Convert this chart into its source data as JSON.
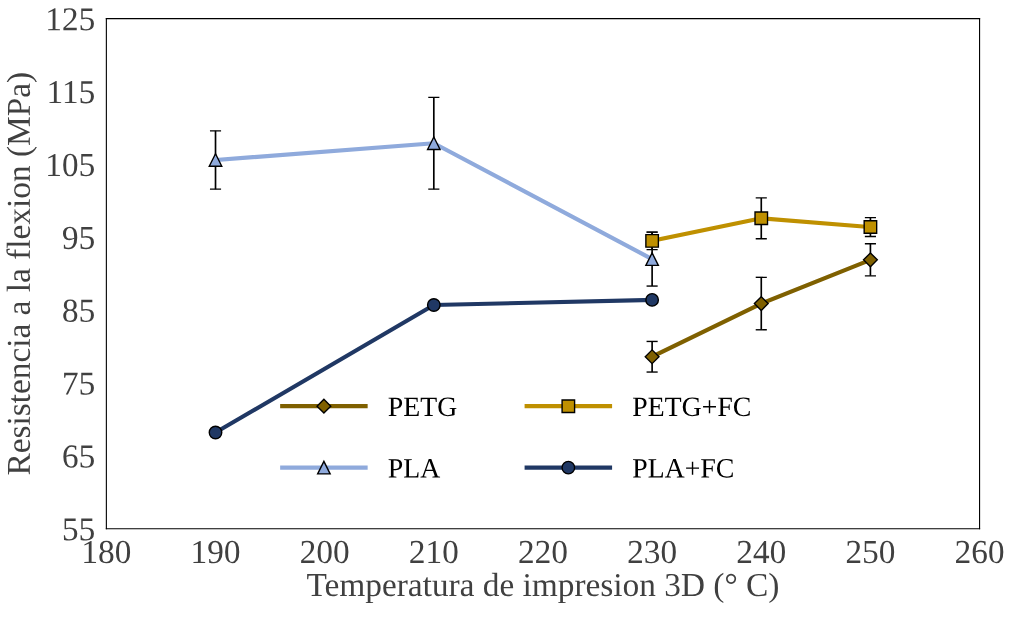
{
  "chart_data": {
    "type": "line",
    "xlabel": "Temperatura de impresion 3D (° C)",
    "ylabel": "Resistencia a la flexion (MPa)",
    "xlim": [
      180,
      260
    ],
    "xticks": [
      180,
      190,
      200,
      210,
      220,
      230,
      240,
      250,
      260
    ],
    "ylim": [
      55,
      125
    ],
    "yticks": [
      55,
      65,
      75,
      85,
      95,
      105,
      115,
      125
    ],
    "grid": false,
    "legend": "bottom",
    "line_style": "solid",
    "series": [
      {
        "name": "PETG",
        "color": "#7f6000",
        "marker": "diamond",
        "x": [
          230,
          240,
          250
        ],
        "values": [
          78.6,
          85.9,
          91.9
        ],
        "errors": [
          2.1,
          3.6,
          2.2
        ]
      },
      {
        "name": "PETG+FC",
        "color": "#bf9000",
        "marker": "square",
        "x": [
          230,
          240,
          250
        ],
        "values": [
          94.5,
          97.6,
          96.4
        ],
        "errors": [
          1.2,
          2.8,
          1.3
        ]
      },
      {
        "name": "PLA",
        "color": "#8faadc",
        "marker": "triangle",
        "x": [
          190,
          210,
          230
        ],
        "values": [
          105.6,
          107.9,
          92.0
        ],
        "errors": [
          4.0,
          6.3,
          3.7
        ]
      },
      {
        "name": "PLA+FC",
        "color": "#203864",
        "marker": "circle",
        "x": [
          190,
          210,
          230
        ],
        "values": [
          68.2,
          85.7,
          86.4
        ]
      }
    ]
  }
}
